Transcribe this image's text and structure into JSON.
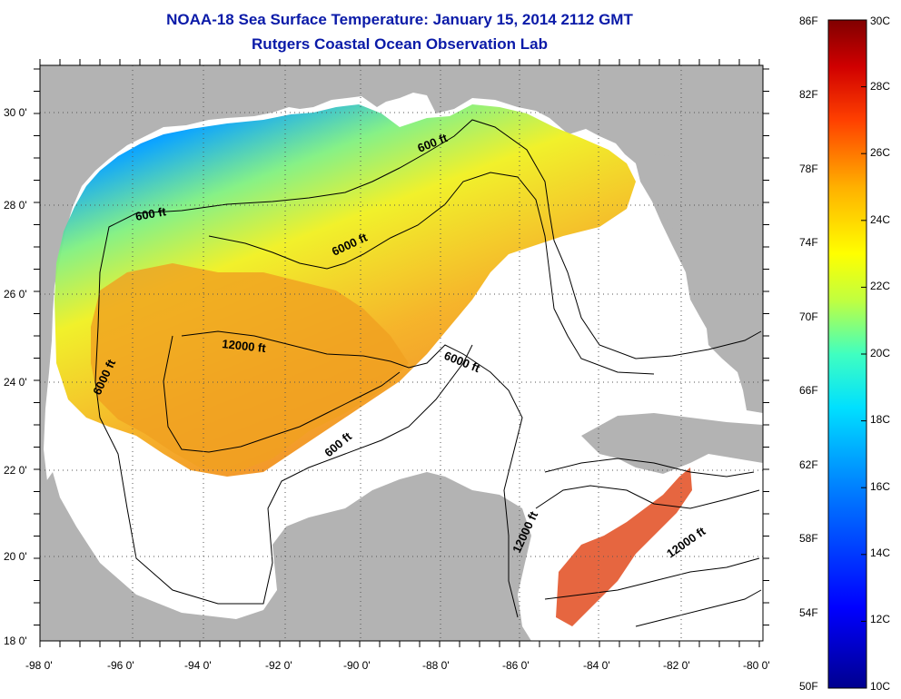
{
  "title": "NOAA-18 Sea Surface Temperature:  January 15, 2014 2112 GMT",
  "subtitle": "Rutgers Coastal Ocean Observation Lab",
  "axes": {
    "x_ticks": [
      "-98 0'",
      "-96 0'",
      "-94 0'",
      "-92 0'",
      "-90 0'",
      "-88 0'",
      "-86 0'",
      "-84 0'",
      "-82 0'",
      "-80 0'"
    ],
    "y_ticks": [
      "30 0'",
      "28 0'",
      "26 0'",
      "24 0'",
      "22 0'",
      "20 0'",
      "18 0'"
    ]
  },
  "contour_labels": [
    "600 ft",
    "600 ft",
    "6000 ft",
    "12000 ft",
    "6000 ft",
    "6000 ft",
    "600 ft",
    "12000 ft",
    "12000 ft"
  ],
  "colorbar": {
    "fahrenheit": [
      "86F",
      "82F",
      "78F",
      "74F",
      "70F",
      "66F",
      "62F",
      "58F",
      "54F",
      "50F"
    ],
    "celsius": [
      "30C",
      "28C",
      "26C",
      "24C",
      "22C",
      "20C",
      "18C",
      "16C",
      "14C",
      "12C",
      "10C"
    ],
    "range_c": [
      10,
      30
    ]
  },
  "colors": {
    "land": "#b3b3b3",
    "title": "#0a1aa8",
    "scale": [
      "#00008f",
      "#0000ff",
      "#0080ff",
      "#00e0ff",
      "#40ffc0",
      "#c0ff40",
      "#ffff00",
      "#ffb000",
      "#ff4000",
      "#d00000",
      "#800000"
    ]
  }
}
